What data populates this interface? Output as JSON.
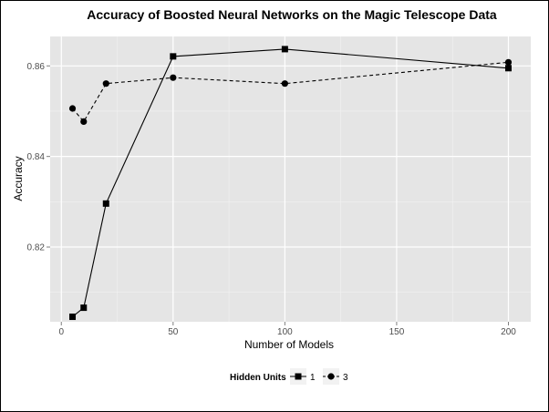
{
  "chart_data": {
    "type": "line",
    "title": "Accuracy of Boosted Neural Networks on the Magic Telescope Data",
    "xlabel": "Number of Models",
    "ylabel": "Accuracy",
    "xlim": [
      -5,
      210
    ],
    "ylim": [
      0.8035,
      0.8665
    ],
    "xticks": [
      0,
      50,
      100,
      150,
      200
    ],
    "xtick_labels": [
      "0",
      "50",
      "100",
      "150",
      "200"
    ],
    "yticks": [
      0.82,
      0.84,
      0.86
    ],
    "ytick_labels": [
      "0.82",
      "0.84",
      "0.86"
    ],
    "grid": true,
    "legend": {
      "title": "Hidden Units",
      "position": "bottom"
    },
    "series": [
      {
        "name": "1",
        "marker": "square",
        "line": "solid",
        "x": [
          5,
          10,
          20,
          50,
          100,
          200
        ],
        "y": [
          0.8046,
          0.8066,
          0.8296,
          0.8621,
          0.8637,
          0.8595
        ]
      },
      {
        "name": "3",
        "marker": "circle",
        "line": "dashed",
        "x": [
          5,
          10,
          20,
          50,
          100,
          200
        ],
        "y": [
          0.8506,
          0.8477,
          0.8561,
          0.8574,
          0.8561,
          0.8608
        ]
      }
    ]
  }
}
